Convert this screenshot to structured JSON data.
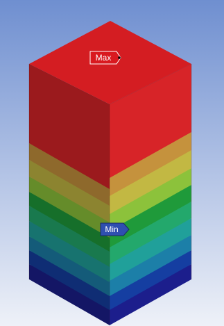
{
  "viewport": {
    "background_top": "#6f8fd0",
    "background_bottom": "#eef1f8"
  },
  "probes": {
    "max_label": "Max",
    "min_label": "Min",
    "max_color": "#d9191f",
    "min_color": "#2f4fb0"
  },
  "contour": {
    "colors": [
      "#1c1e8c",
      "#153ea1",
      "#1c7fa8",
      "#20a09a",
      "#23a86c",
      "#1f9a3a",
      "#8cc23b",
      "#c2b843",
      "#c5923d",
      "#d72428"
    ],
    "top_face_color": "#d41d22"
  }
}
